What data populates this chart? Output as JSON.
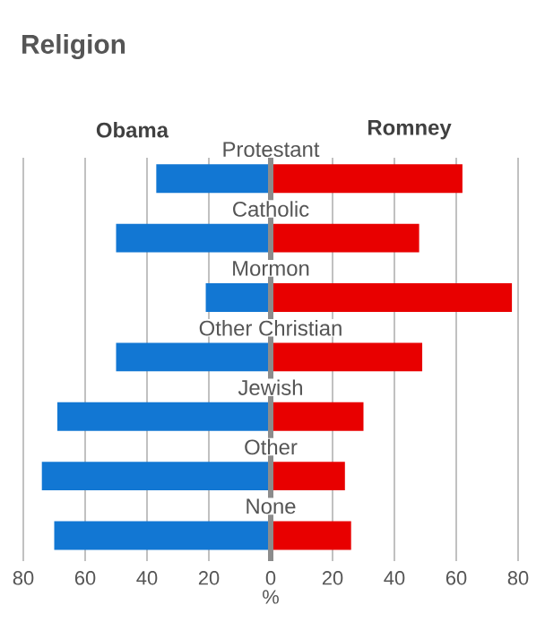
{
  "chart_data": {
    "type": "bar",
    "orientation": "horizontal",
    "stacked": true,
    "title": "Religion",
    "xlabel": "%",
    "categories": [
      "Protestant",
      "Catholic",
      "Mormon",
      "Other Christian",
      "Jewish",
      "Other",
      "None"
    ],
    "series": [
      {
        "name": "Obama",
        "color": "#1277d3",
        "values": [
          -37,
          -50,
          -21,
          -50,
          -69,
          -74,
          -70
        ]
      },
      {
        "name": "Romney",
        "color": "#e80000",
        "values": [
          62,
          48,
          78,
          49,
          30,
          24,
          26
        ]
      }
    ],
    "xlim": [
      -80,
      80
    ],
    "xticks": [
      {
        "value": -80,
        "label": "80"
      },
      {
        "value": -60,
        "label": "60"
      },
      {
        "value": -40,
        "label": "40"
      },
      {
        "value": -20,
        "label": "20"
      },
      0,
      20,
      40,
      60,
      80
    ],
    "grid": "x"
  }
}
